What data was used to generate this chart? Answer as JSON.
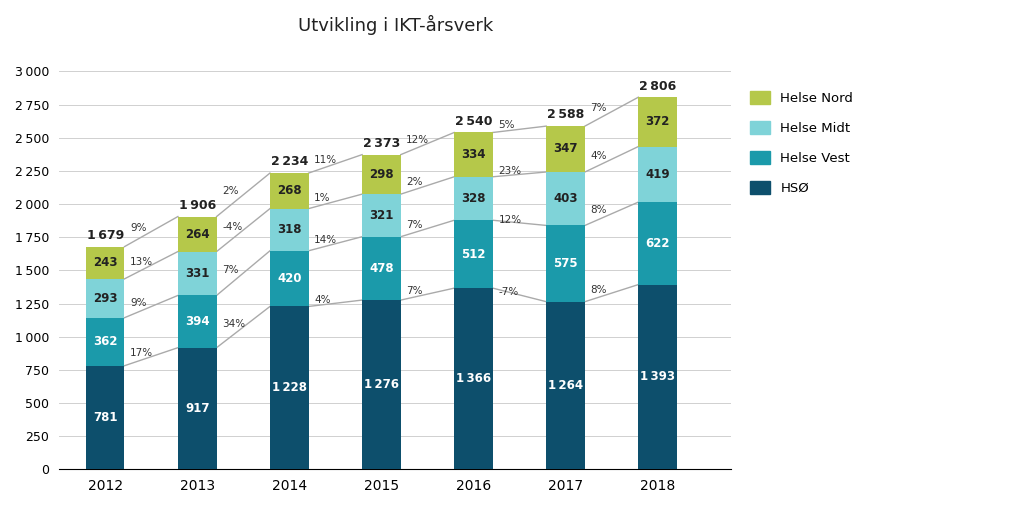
{
  "title": "Utvikling i IKT-årsverk",
  "years": [
    "2012",
    "2013",
    "2014",
    "2015",
    "2016",
    "2017",
    "2018"
  ],
  "HSO": [
    781,
    917,
    1228,
    1276,
    1366,
    1264,
    1393
  ],
  "Helse_Vest": [
    362,
    394,
    420,
    478,
    512,
    575,
    622
  ],
  "Helse_Midt": [
    293,
    331,
    318,
    321,
    328,
    403,
    419
  ],
  "Helse_Nord": [
    243,
    264,
    268,
    298,
    334,
    347,
    372
  ],
  "totals": [
    1679,
    1906,
    2234,
    2373,
    2540,
    2588,
    2806
  ],
  "color_HSO": "#0d4f6c",
  "color_Helse_Vest": "#1b9aaa",
  "color_Helse_Midt": "#7fd3d8",
  "color_Helse_Nord": "#b5c84a",
  "color_line": "#aaaaaa",
  "background_color": "#ffffff",
  "ylim": [
    0,
    3200
  ],
  "yticks": [
    0,
    250,
    500,
    750,
    1000,
    1250,
    1500,
    1750,
    2000,
    2250,
    2500,
    2750,
    3000
  ],
  "gap_pcts": [
    {
      "total": "9%",
      "nord": "13%",
      "midt": "9%",
      "vest": "17%"
    },
    {
      "total": "2%",
      "nord": "-4%",
      "midt": "7%",
      "vest": "34%"
    },
    {
      "total": "11%",
      "nord": "1%",
      "midt": "14%",
      "vest": "4%"
    },
    {
      "total": "12%",
      "nord": "2%",
      "midt": "7%",
      "vest": "7%"
    },
    {
      "total": "5%",
      "nord": "23%",
      "midt": "12%",
      "vest": "-7%"
    },
    {
      "total": "7%",
      "nord": "4%",
      "midt": "8%",
      "vest": "8%"
    }
  ]
}
